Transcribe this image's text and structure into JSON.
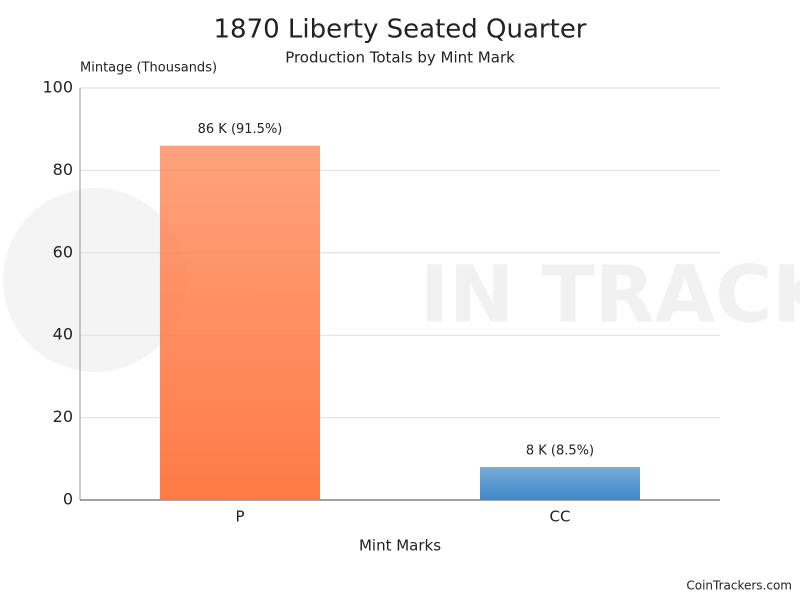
{
  "chart_data": {
    "type": "bar",
    "title": "1870 Liberty Seated Quarter",
    "subtitle": "Production Totals by Mint Mark",
    "y_label": "Mintage (Thousands)",
    "x_label": "Mint Marks",
    "categories": [
      "P",
      "CC"
    ],
    "values": [
      86,
      8
    ],
    "value_labels": [
      "86 K (91.5%)",
      "8 K (8.5%)"
    ],
    "colors": [
      "#ff7a45",
      "#3f88c8"
    ],
    "ylim": [
      0,
      100
    ],
    "yticks": [
      0,
      20,
      40,
      60,
      80,
      100
    ],
    "grid": true,
    "watermark": "IN TRACKERS",
    "credit": "CoinTrackers.com"
  }
}
